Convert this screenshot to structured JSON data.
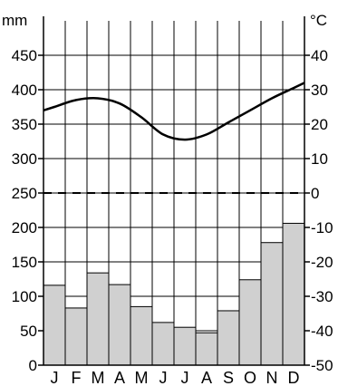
{
  "chart_data": {
    "type": "bar",
    "subtype": "climate-diagram",
    "categories": [
      "J",
      "F",
      "M",
      "A",
      "M",
      "J",
      "J",
      "A",
      "S",
      "O",
      "N",
      "D"
    ],
    "precipitation": {
      "unit": "mm",
      "values": [
        116,
        83,
        134,
        117,
        85,
        62,
        55,
        47,
        79,
        124,
        178,
        206
      ],
      "ylim": [
        0,
        500
      ],
      "ticks": [
        0,
        50,
        100,
        150,
        200,
        250,
        300,
        350,
        400,
        450
      ],
      "bar_color": "#d0d0d0"
    },
    "temperature": {
      "unit": "°C",
      "values": [
        25,
        27,
        27.5,
        26,
        22,
        17,
        15.5,
        17,
        20.5,
        24,
        27.5,
        30.5
      ],
      "ylim": [
        -50,
        50
      ],
      "ticks": [
        -50,
        -40,
        -30,
        -20,
        -10,
        0,
        10,
        20,
        30,
        40
      ],
      "line_color": "#000000"
    },
    "zero_line": {
      "value": 0,
      "style": "dashed"
    },
    "grid": true
  }
}
